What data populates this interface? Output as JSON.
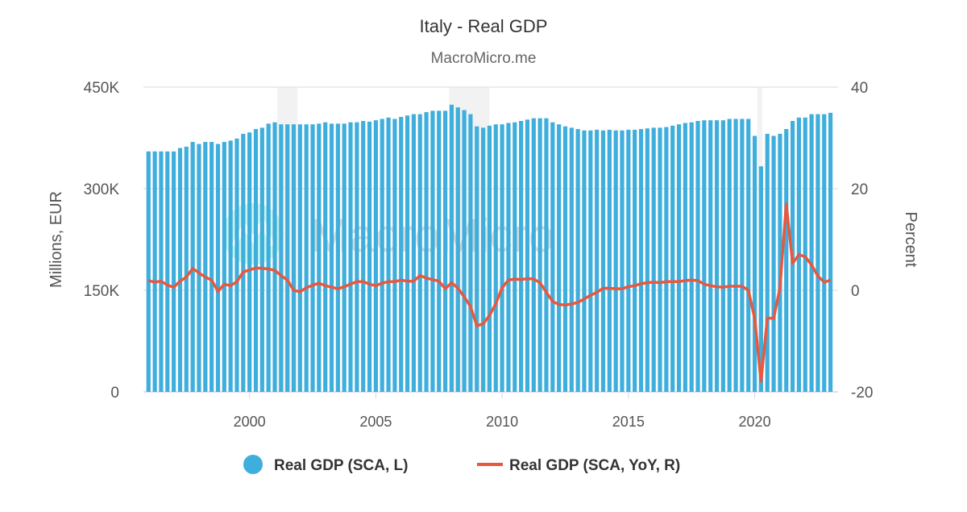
{
  "chart_data": {
    "type": "bar+line",
    "title": "Italy - Real GDP",
    "subtitle": "MacroMicro.me",
    "watermark": "MacroMicro",
    "start_quarter": "1996Q1",
    "frequency": "quarterly",
    "x_ticks": [
      "2000",
      "2005",
      "2010",
      "2015",
      "2020"
    ],
    "x_range": [
      1995.8,
      2023.3
    ],
    "left_axis": {
      "label": "Millions, EUR",
      "range": [
        0,
        450000
      ],
      "ticks": [
        "0",
        "150K",
        "300K",
        "450K"
      ]
    },
    "right_axis": {
      "label": "Percent",
      "range": [
        -20,
        40
      ],
      "ticks": [
        "-20",
        "0",
        "20",
        "40"
      ]
    },
    "grid": "horizontal",
    "legend_position": "bottom",
    "recession_shading": [
      [
        2001.1,
        2001.9
      ],
      [
        2007.9,
        2009.5
      ],
      [
        2020.1,
        2020.3
      ]
    ],
    "series": [
      {
        "name": "Real GDP (SCA, L)",
        "type": "bar",
        "axis": "left",
        "color": "#3eaedc",
        "unit": "thousand EUR millions",
        "values": [
          355,
          355,
          355,
          355,
          355,
          360,
          362,
          369,
          366,
          369,
          369,
          366,
          369,
          371,
          374,
          381,
          383,
          388,
          390,
          396,
          398,
          395,
          395,
          395,
          395,
          395,
          395,
          396,
          398,
          396,
          396,
          396,
          398,
          398,
          400,
          399,
          401,
          403,
          405,
          403,
          406,
          408,
          410,
          410,
          413,
          415,
          415,
          415,
          424,
          420,
          416,
          410,
          392,
          390,
          393,
          395,
          395,
          397,
          398,
          400,
          402,
          404,
          404,
          404,
          398,
          395,
          392,
          390,
          388,
          386,
          386,
          387,
          386,
          387,
          386,
          386,
          387,
          387,
          388,
          389,
          390,
          390,
          391,
          393,
          395,
          397,
          398,
          400,
          401,
          401,
          401,
          401,
          403,
          403,
          403,
          403,
          378,
          333,
          381,
          378,
          381,
          388,
          400,
          405,
          405,
          410,
          410,
          410,
          412
        ]
      },
      {
        "name": "Real GDP (SCA, YoY, R)",
        "type": "line",
        "axis": "right",
        "color": "#e8573e",
        "unit": "percent",
        "values": [
          1.9,
          1.6,
          1.8,
          1.0,
          0.6,
          1.8,
          2.6,
          4.3,
          3.4,
          2.6,
          2.0,
          -0.2,
          1.2,
          0.9,
          1.7,
          3.6,
          4.0,
          4.4,
          4.3,
          4.2,
          3.9,
          2.9,
          2.0,
          0.0,
          -0.3,
          0.5,
          1.0,
          1.4,
          0.9,
          0.6,
          0.3,
          0.7,
          1.2,
          1.7,
          1.7,
          1.2,
          0.9,
          1.4,
          1.7,
          1.7,
          2.0,
          1.8,
          1.8,
          2.9,
          2.4,
          2.1,
          1.8,
          0.3,
          1.5,
          0.4,
          -1.3,
          -3.2,
          -7.0,
          -6.6,
          -5.0,
          -2.6,
          0.5,
          2.0,
          2.2,
          2.1,
          2.3,
          2.2,
          1.5,
          -0.4,
          -2.2,
          -2.8,
          -2.9,
          -2.7,
          -2.4,
          -1.7,
          -1.0,
          -0.4,
          0.4,
          0.4,
          0.3,
          0.3,
          0.7,
          0.9,
          1.3,
          1.5,
          1.6,
          1.5,
          1.7,
          1.7,
          1.7,
          1.9,
          2.0,
          1.9,
          1.2,
          0.9,
          0.7,
          0.6,
          0.8,
          0.8,
          0.8,
          0.0,
          -5.6,
          -17.9,
          -5.5,
          -5.5,
          0.5,
          17.0,
          5.3,
          7.0,
          6.6,
          5.0,
          2.8,
          1.6,
          2.0
        ]
      }
    ]
  }
}
